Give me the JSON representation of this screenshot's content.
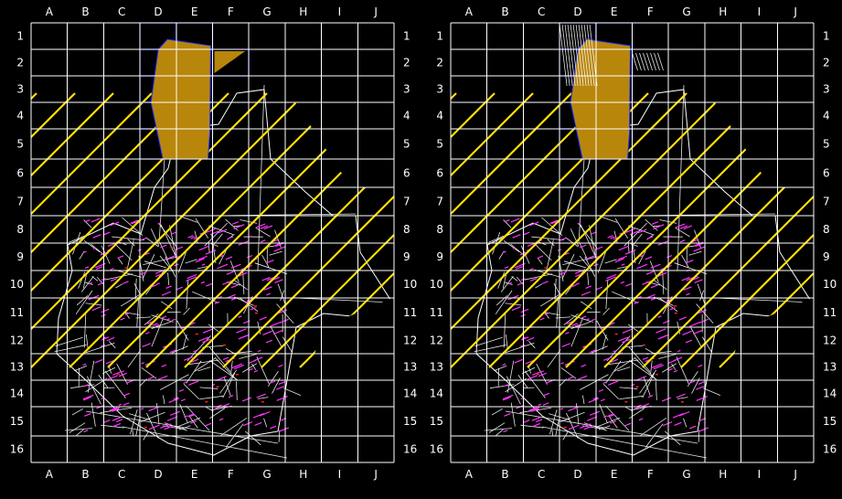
{
  "columns": [
    "A",
    "B",
    "C",
    "D",
    "E",
    "F",
    "G",
    "H",
    "I",
    "J"
  ],
  "rows": [
    "1",
    "2",
    "3",
    "4",
    "5",
    "6",
    "7",
    "8",
    "9",
    "10",
    "11",
    "12",
    "13",
    "14",
    "15",
    "16"
  ],
  "colors": {
    "background": "#000000",
    "grid": "#ffffff",
    "hatch": "#ffe100",
    "highlight_fill": "#b8860b",
    "highlight_border": "#1a2cff",
    "buildings": "#ff33ff",
    "outline": "#ffffff"
  },
  "panels": [
    {
      "name": "left-map",
      "highlighted_cells": [
        "D1",
        "E1",
        "D2",
        "E2",
        "F2",
        "D3",
        "E3",
        "D4",
        "E4",
        "D5",
        "E5"
      ]
    },
    {
      "name": "right-map",
      "highlighted_cells": [
        "D1",
        "E1",
        "D2",
        "E2",
        "D3",
        "E3",
        "D4",
        "E4",
        "D5",
        "E5"
      ]
    }
  ]
}
